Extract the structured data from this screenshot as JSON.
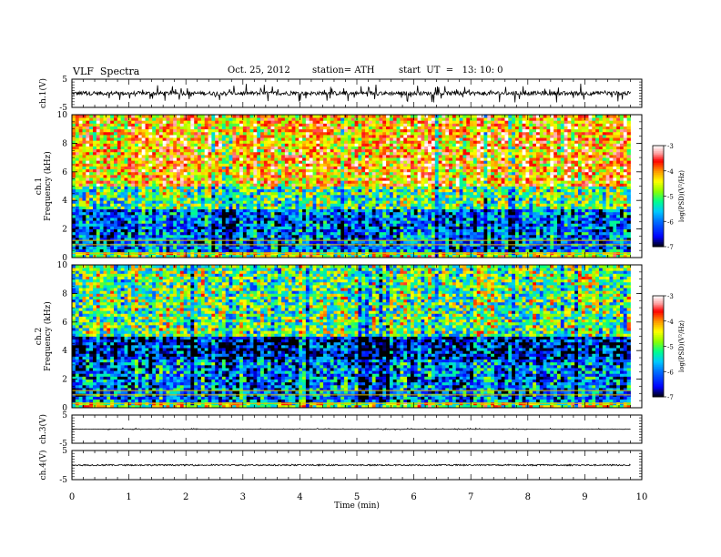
{
  "header": {
    "title": "VLF  Spectra",
    "date": "Oct. 25, 2012",
    "station": "station= ATH",
    "start": "start  UT  =   13: 10: 0"
  },
  "chart_data": [
    {
      "type": "line",
      "panel": "ch1-waveform",
      "ylabel": "ch.1(V)",
      "ylim": [
        -5,
        5
      ],
      "yticks": [
        "5",
        "-5"
      ],
      "xlim": [
        0,
        10
      ],
      "data_extent_min": 9.8,
      "description_values": {
        "baseline": 0,
        "typical_amplitude": 1.5,
        "spike_amplitude": 4
      }
    },
    {
      "type": "heatmap",
      "panel": "ch1-spectrogram",
      "ylabel": "ch.1\nFrequency  (kHz)",
      "ylim": [
        0,
        10
      ],
      "yticks": [
        "0",
        "2",
        "4",
        "6",
        "8",
        "10"
      ],
      "xlim": [
        0,
        10
      ],
      "dominant_logpsd_low_band": -6,
      "dominant_logpsd_mid_band": -5,
      "dominant_logpsd_high_band": -4,
      "colorbar": {
        "label": "log(PSD)(V²/Hz)",
        "range": [
          -7,
          -3
        ],
        "ticks": [
          "-3",
          "-4",
          "-5",
          "-6",
          "-7"
        ]
      }
    },
    {
      "type": "heatmap",
      "panel": "ch2-spectrogram",
      "ylabel": "ch.2\nFrequency  (kHz)",
      "ylim": [
        0,
        10
      ],
      "yticks": [
        "0",
        "2",
        "4",
        "6",
        "8",
        "10"
      ],
      "xlim": [
        0,
        10
      ],
      "dominant_logpsd_low_band": -6,
      "dominant_logpsd_mid_band": -6.5,
      "dominant_logpsd_high_band": -5,
      "colorbar": {
        "label": "log(PSD)(V²/Hz)",
        "range": [
          -7,
          -3
        ],
        "ticks": [
          "-3",
          "-4",
          "-5",
          "-6",
          "-7"
        ]
      }
    },
    {
      "type": "line",
      "panel": "ch3-waveform",
      "ylabel": "ch.3(V)",
      "ylim": [
        -5,
        5
      ],
      "yticks": [
        "5",
        "-5"
      ],
      "xlim": [
        0,
        10
      ],
      "description_values": {
        "baseline": 0
      }
    },
    {
      "type": "line",
      "panel": "ch4-waveform",
      "ylabel": "ch.4(V)",
      "ylim": [
        -5,
        5
      ],
      "yticks": [
        "5",
        "-5"
      ],
      "xlim": [
        0,
        10
      ],
      "description_values": {
        "baseline": 0
      }
    }
  ],
  "x_axis": {
    "label": "Time  (min)",
    "ticks": [
      "0",
      "1",
      "2",
      "3",
      "4",
      "5",
      "6",
      "7",
      "8",
      "9",
      "10"
    ]
  },
  "colors": {
    "colormap": [
      "#000000",
      "#0000ff",
      "#00c0ff",
      "#00ff80",
      "#ffff00",
      "#ff8000",
      "#ff0000",
      "#ffffff"
    ]
  }
}
